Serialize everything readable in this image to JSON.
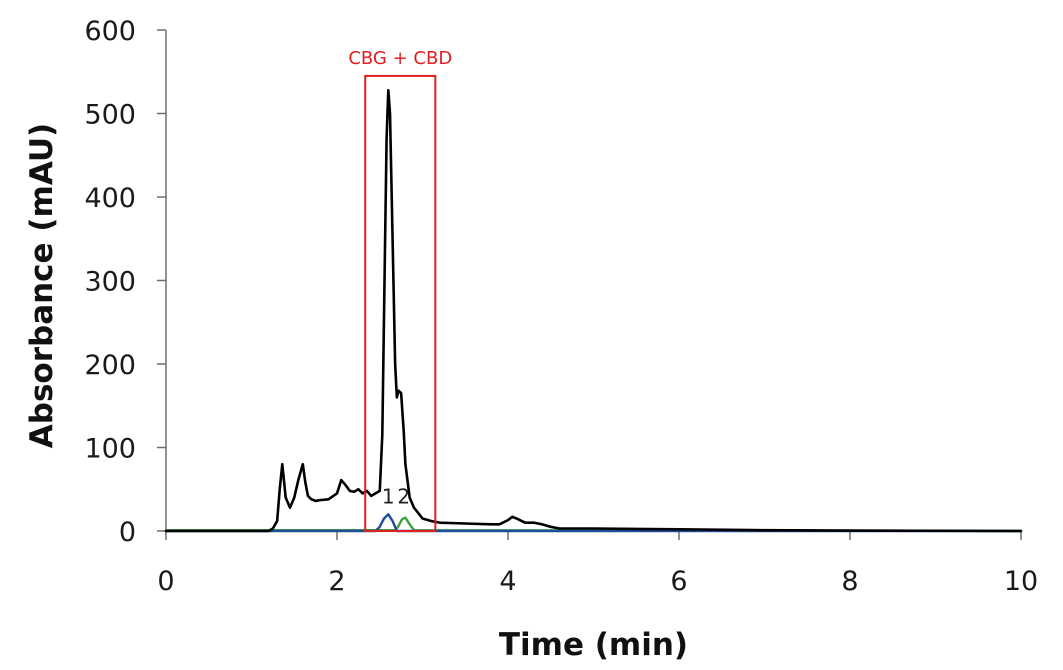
{
  "chart_data": {
    "type": "line",
    "title": "",
    "xlabel": "Time (min)",
    "ylabel": "Absorbance (mAU)",
    "xlim": [
      0,
      10
    ],
    "ylim": [
      0,
      600
    ],
    "xticks": [
      "0",
      "2",
      "4",
      "6",
      "8",
      "10"
    ],
    "yticks": [
      "0",
      "100",
      "200",
      "300",
      "400",
      "500",
      "600"
    ],
    "grid": false,
    "colors": {
      "chromatogram": "#000000",
      "peak1": "#1f4e9b",
      "peak2": "#3fa23f",
      "highlight": "#e02020"
    },
    "highlight_box": {
      "label": "CBG + CBD",
      "x_range": [
        2.33,
        3.15
      ],
      "y_range": [
        0,
        545
      ]
    },
    "peak_labels": [
      {
        "text": "1",
        "x": 2.6,
        "y": 33
      },
      {
        "text": "2",
        "x": 2.78,
        "y": 33
      }
    ],
    "series": [
      {
        "x": [
          0,
          1.2,
          1.25,
          1.3,
          1.33,
          1.36,
          1.4,
          1.45,
          1.5,
          1.55,
          1.6,
          1.63,
          1.66,
          1.7,
          1.75,
          1.8,
          1.9,
          2.0,
          2.05,
          2.1,
          2.15,
          2.2,
          2.25,
          2.3,
          2.35,
          2.4,
          2.45,
          2.5,
          2.53,
          2.56,
          2.58,
          2.6,
          2.62,
          2.65,
          2.68,
          2.7,
          2.72,
          2.75,
          2.78,
          2.8,
          2.85,
          2.9,
          3.0,
          3.1,
          3.2,
          3.5,
          3.8,
          3.9,
          4.0,
          4.05,
          4.1,
          4.2,
          4.3,
          4.4,
          4.5,
          4.6,
          5.0,
          6.0,
          7.0,
          8.0,
          9.0,
          10.0
        ],
        "values": [
          0,
          0,
          3,
          12,
          50,
          80,
          40,
          28,
          40,
          62,
          80,
          58,
          42,
          38,
          36,
          37,
          38,
          45,
          61,
          55,
          48,
          47,
          50,
          45,
          48,
          42,
          45,
          48,
          115,
          330,
          470,
          528,
          500,
          350,
          200,
          160,
          168,
          165,
          120,
          80,
          40,
          28,
          15,
          12,
          10,
          9,
          8,
          8,
          13,
          17,
          15,
          10,
          10,
          8,
          5,
          3,
          3,
          2,
          1,
          0.5,
          0.3,
          0
        ]
      },
      {
        "x": [
          0,
          2.45,
          2.5,
          2.55,
          2.6,
          2.65,
          2.7,
          10
        ],
        "values": [
          0,
          0,
          5,
          15,
          20,
          12,
          0,
          0
        ]
      },
      {
        "x": [
          0,
          2.68,
          2.72,
          2.76,
          2.8,
          2.85,
          2.9,
          10
        ],
        "values": [
          1,
          1,
          6,
          14,
          16,
          8,
          1,
          0
        ]
      }
    ]
  }
}
